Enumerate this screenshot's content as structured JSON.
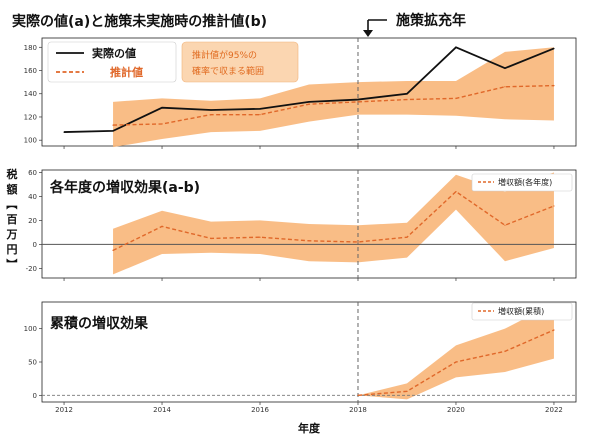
{
  "colors": {
    "actual": "#111111",
    "estimate": "#e0682a",
    "band": "#f8b679",
    "zero_line": "#555555",
    "policy_line": "#666666"
  },
  "annotation": {
    "policy_label": "施策拡充年",
    "band_note_line1": "推計値が95%の",
    "band_note_line2": "確率で収まる範囲"
  },
  "ylabel": "税額【百万円】",
  "xlabel": "年度",
  "x_ticks": [
    2012,
    2014,
    2016,
    2018,
    2020,
    2022
  ],
  "policy_year": 2018,
  "chart_data": [
    {
      "type": "line",
      "title": "実際の値(a)と施策未実施時の推計値(b)",
      "ylim": [
        95,
        188
      ],
      "yticks": [
        100,
        120,
        140,
        160,
        180
      ],
      "legend": {
        "position": "top-left",
        "entries": [
          "実際の値",
          "推計値"
        ]
      },
      "series": [
        {
          "name": "実際の値",
          "x": [
            2012,
            2013,
            2014,
            2015,
            2016,
            2017,
            2018,
            2019,
            2020,
            2021,
            2022
          ],
          "values": [
            107,
            108,
            128,
            126,
            127,
            133,
            135,
            140,
            180,
            162,
            179
          ]
        },
        {
          "name": "推計値",
          "x": [
            2013,
            2014,
            2015,
            2016,
            2017,
            2018,
            2019,
            2020,
            2021,
            2022
          ],
          "values": [
            113,
            114,
            122,
            122,
            131,
            133,
            135,
            136,
            146,
            147
          ],
          "lower": [
            94,
            101,
            107,
            108,
            116,
            122,
            122,
            121,
            118,
            117
          ],
          "upper": [
            133,
            136,
            134,
            136,
            148,
            150,
            151,
            151,
            176,
            180
          ]
        }
      ]
    },
    {
      "type": "line",
      "title": "各年度の増収効果(a-b)",
      "ylim": [
        -28,
        62
      ],
      "yticks": [
        -20,
        0,
        20,
        40,
        60
      ],
      "legend": {
        "position": "top-right",
        "entries": [
          "増収額(各年度)"
        ]
      },
      "series": [
        {
          "name": "増収額(各年度)",
          "x": [
            2013,
            2014,
            2015,
            2016,
            2017,
            2018,
            2019,
            2020,
            2021,
            2022
          ],
          "values": [
            -5,
            15,
            5,
            6,
            3,
            2,
            6,
            44,
            16,
            32
          ],
          "lower": [
            -25,
            -8,
            -7,
            -8,
            -14,
            -15,
            -11,
            29,
            -14,
            -3
          ],
          "upper": [
            13,
            28,
            19,
            20,
            17,
            16,
            18,
            58,
            44,
            60
          ]
        }
      ]
    },
    {
      "type": "line",
      "title": "累積の増収効果",
      "ylim": [
        -10,
        140
      ],
      "yticks": [
        0,
        50,
        100
      ],
      "legend": {
        "position": "top-right",
        "entries": [
          "増収額(累積)"
        ]
      },
      "series": [
        {
          "name": "増収額(累積)",
          "x": [
            2018,
            2019,
            2020,
            2021,
            2022
          ],
          "values": [
            0,
            6,
            50,
            66,
            98
          ],
          "lower": [
            0,
            -6,
            27,
            35,
            55
          ],
          "upper": [
            0,
            18,
            75,
            100,
            138
          ]
        }
      ]
    }
  ]
}
